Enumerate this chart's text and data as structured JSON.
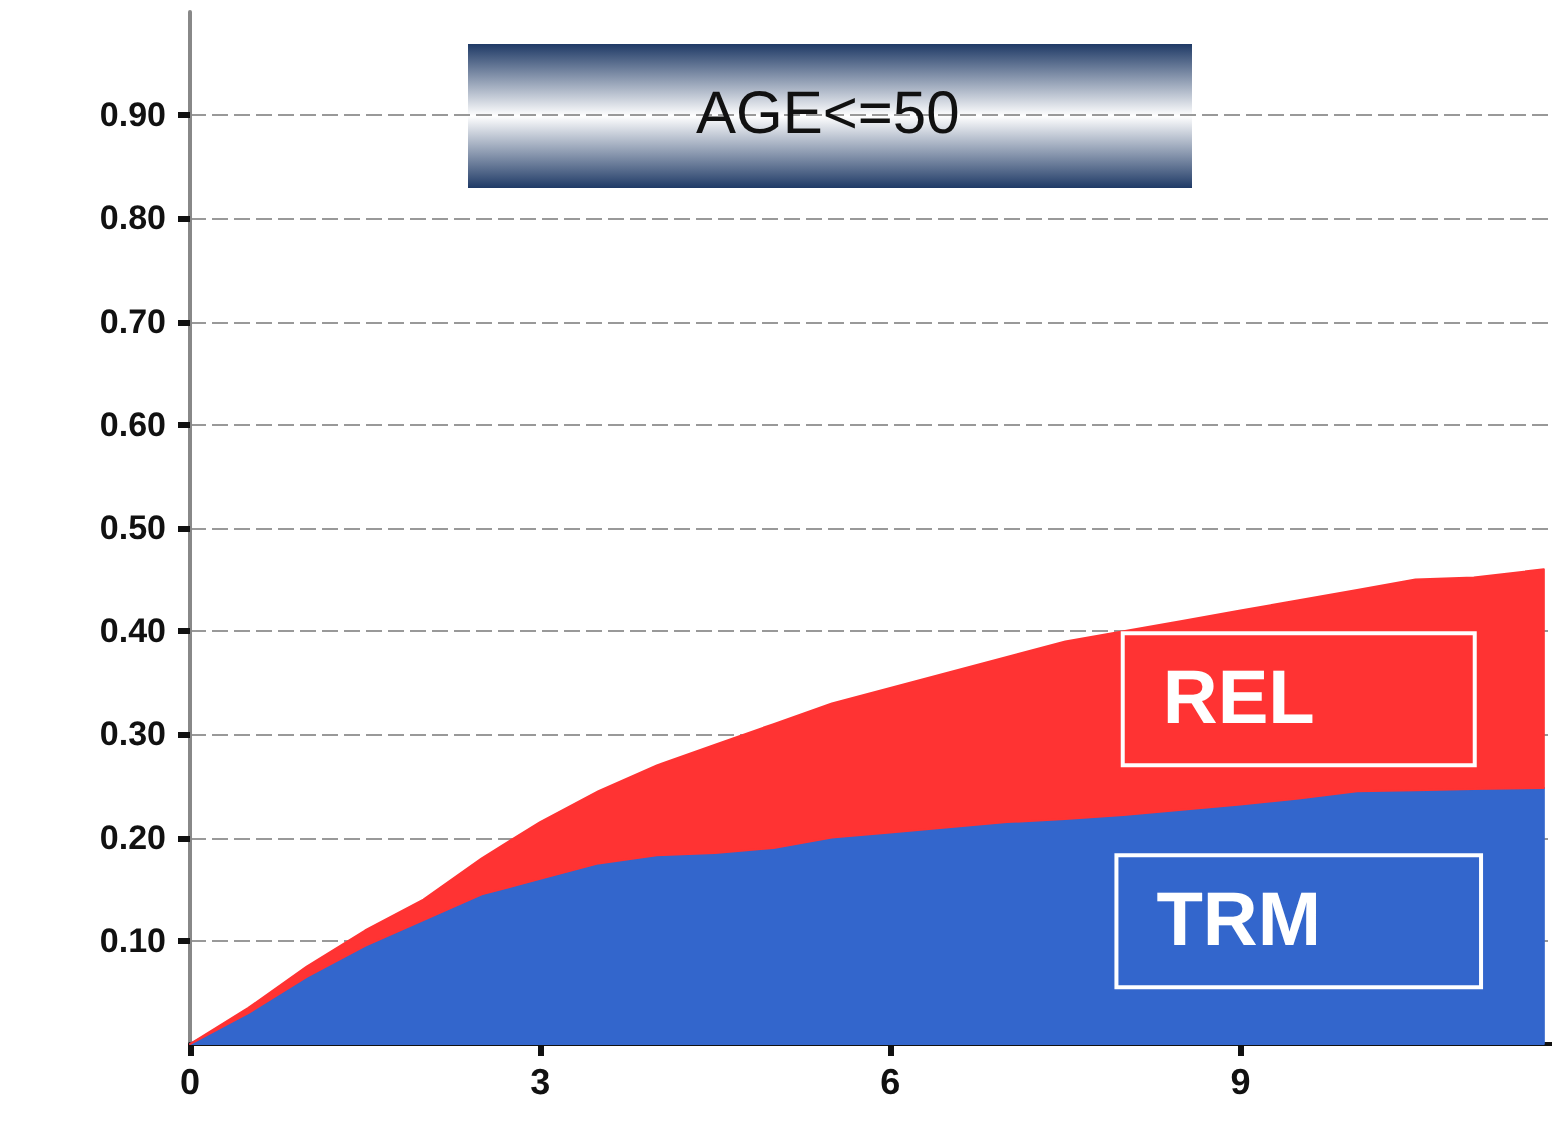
{
  "chart_data": {
    "type": "area",
    "title": "AGE<=50",
    "stacked": true,
    "legend": false,
    "grid": "y",
    "line_style": "solid",
    "x": [
      0,
      0.5,
      1,
      1.5,
      2,
      2.5,
      3,
      3.5,
      4,
      4.5,
      5,
      5.5,
      6,
      6.5,
      7,
      7.5,
      8,
      8.5,
      9,
      9.5,
      10,
      10.5,
      11,
      11.6
    ],
    "series": [
      {
        "name": "TRM",
        "color": "#3366cc",
        "values": [
          0,
          0.03,
          0.065,
          0.095,
          0.12,
          0.145,
          0.16,
          0.175,
          0.183,
          0.185,
          0.19,
          0.2,
          0.205,
          0.21,
          0.215,
          0.218,
          0.222,
          0.227,
          0.232,
          0.238,
          0.245,
          0.246,
          0.247,
          0.248
        ]
      },
      {
        "name": "REL",
        "color": "#ff3333",
        "values": [
          0,
          0.005,
          0.01,
          0.015,
          0.02,
          0.035,
          0.055,
          0.07,
          0.087,
          0.105,
          0.12,
          0.13,
          0.14,
          0.15,
          0.16,
          0.172,
          0.178,
          0.183,
          0.188,
          0.192,
          0.195,
          0.204,
          0.205,
          0.212
        ]
      }
    ],
    "xlim": [
      0,
      11.67
    ],
    "xticks": [
      0,
      3,
      6,
      9
    ],
    "ylim": [
      0,
      1
    ],
    "yticks": [
      {
        "value": 0.1,
        "label": "0.10"
      },
      {
        "value": 0.2,
        "label": "0.20"
      },
      {
        "value": 0.3,
        "label": "0.30"
      },
      {
        "value": 0.4,
        "label": "0.40"
      },
      {
        "value": 0.5,
        "label": "0.50"
      },
      {
        "value": 0.6,
        "label": "0.60"
      },
      {
        "value": 0.7,
        "label": "0.70"
      },
      {
        "value": 0.8,
        "label": "0.80"
      },
      {
        "value": 0.9,
        "label": "0.90"
      }
    ]
  }
}
